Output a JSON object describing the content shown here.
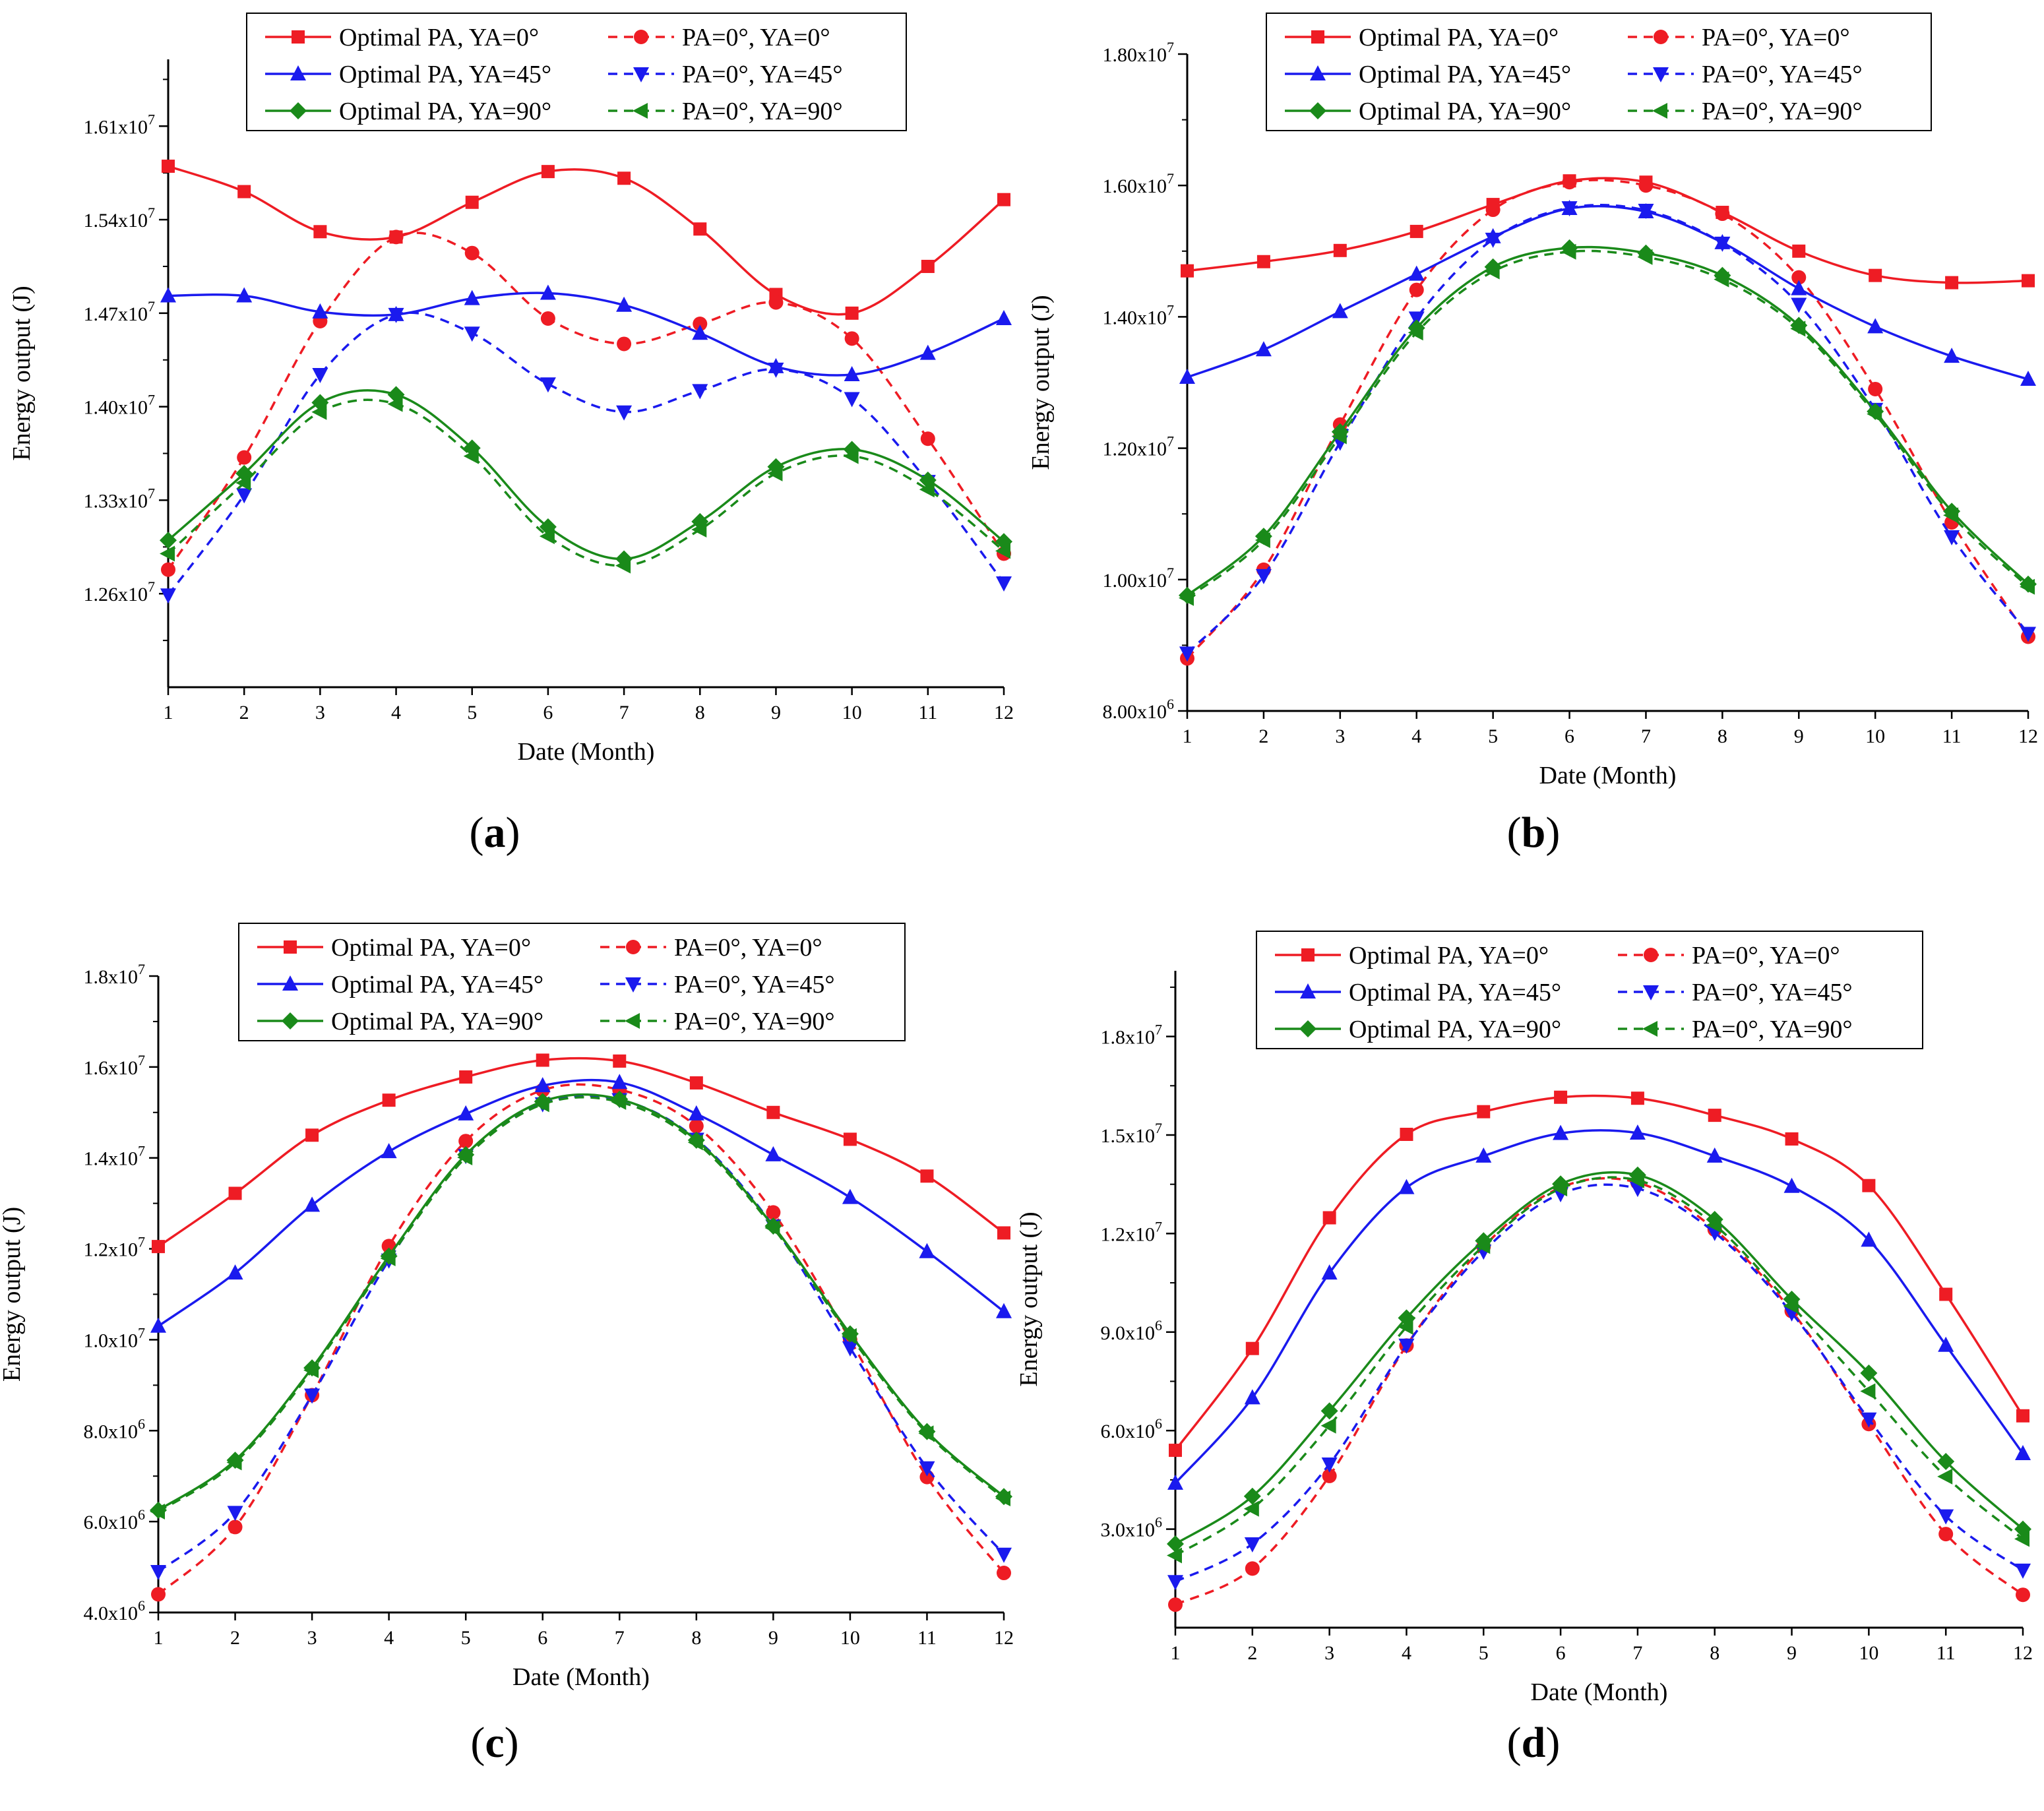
{
  "colors": {
    "red": "#ee1c24",
    "blue": "#1a1aee",
    "green": "#1a8a1a"
  },
  "legend_entries": [
    {
      "name": "Optimal PA, YA=0°",
      "color": "red",
      "dash": false,
      "marker": "square"
    },
    {
      "name": "PA=0°, YA=0°",
      "color": "red",
      "dash": true,
      "marker": "circle"
    },
    {
      "name": "Optimal PA, YA=45°",
      "color": "blue",
      "dash": false,
      "marker": "triangle-up"
    },
    {
      "name": "PA=0°, YA=45°",
      "color": "blue",
      "dash": true,
      "marker": "triangle-down"
    },
    {
      "name": "Optimal PA, YA=90°",
      "color": "green",
      "dash": false,
      "marker": "diamond"
    },
    {
      "name": "PA=0°, YA=90°",
      "color": "green",
      "dash": true,
      "marker": "triangle-left"
    }
  ],
  "chart_data": [
    {
      "type": "line",
      "panel_label": "a",
      "xlabel": "Date (Month)",
      "ylabel": "Energy output (J)",
      "x": [
        1,
        2,
        3,
        4,
        5,
        6,
        7,
        8,
        9,
        10,
        11,
        12
      ],
      "xlim": [
        1,
        12
      ],
      "ylim": [
        11900000.0,
        16600000.0
      ],
      "yticks": [
        12600000.0,
        13300000.0,
        14000000.0,
        14700000.0,
        15400000.0,
        16100000.0
      ],
      "ytick_labels": [
        {
          "mantissa": "1.26x10",
          "exp": "7"
        },
        {
          "mantissa": "1.33x10",
          "exp": "7"
        },
        {
          "mantissa": "1.40x10",
          "exp": "7"
        },
        {
          "mantissa": "1.47x10",
          "exp": "7"
        },
        {
          "mantissa": "1.54x10",
          "exp": "7"
        },
        {
          "mantissa": "1.61x10",
          "exp": "7"
        }
      ],
      "series": [
        {
          "name": "Optimal PA, YA=0°",
          "values": [
            15800000.0,
            15610000.0,
            15310000.0,
            15270000.0,
            15530000.0,
            15760000.0,
            15710000.0,
            15330000.0,
            14840000.0,
            14700000.0,
            15050000.0,
            15550000.0
          ]
        },
        {
          "name": "PA=0°, YA=0°",
          "values": [
            12780000.0,
            13620000.0,
            14640000.0,
            15270000.0,
            15150000.0,
            14660000.0,
            14470000.0,
            14620000.0,
            14780000.0,
            14510000.0,
            13760000.0,
            12900000.0
          ]
        },
        {
          "name": "Optimal PA, YA=45°",
          "values": [
            14830000.0,
            14830000.0,
            14710000.0,
            14690000.0,
            14810000.0,
            14850000.0,
            14760000.0,
            14550000.0,
            14300000.0,
            14240000.0,
            14400000.0,
            14660000.0
          ]
        },
        {
          "name": "PA=0°, YA=45°",
          "values": [
            12590000.0,
            13340000.0,
            14240000.0,
            14690000.0,
            14550000.0,
            14170000.0,
            13960000.0,
            14120000.0,
            14280000.0,
            14060000.0,
            13440000.0,
            12680000.0
          ]
        },
        {
          "name": "Optimal PA, YA=90°",
          "values": [
            13000000.0,
            13500000.0,
            14030000.0,
            14090000.0,
            13690000.0,
            13100000.0,
            12860000.0,
            13140000.0,
            13550000.0,
            13680000.0,
            13450000.0,
            12990000.0
          ]
        },
        {
          "name": "PA=0°, YA=90°",
          "values": [
            12900000.0,
            13430000.0,
            13960000.0,
            14020000.0,
            13630000.0,
            13030000.0,
            12810000.0,
            13080000.0,
            13500000.0,
            13630000.0,
            13380000.0,
            12920000.0
          ]
        }
      ]
    },
    {
      "type": "line",
      "panel_label": "b",
      "xlabel": "Date (Month)",
      "ylabel": "Energy output (J)",
      "x": [
        1,
        2,
        3,
        4,
        5,
        6,
        7,
        8,
        9,
        10,
        11,
        12
      ],
      "xlim": [
        1,
        12
      ],
      "ylim": [
        8000000.0,
        18000000.0
      ],
      "yticks": [
        8000000.0,
        10000000.0,
        12000000.0,
        14000000.0,
        16000000.0,
        18000000.0
      ],
      "ytick_labels": [
        {
          "mantissa": "8.00x10",
          "exp": "6"
        },
        {
          "mantissa": "1.00x10",
          "exp": "7"
        },
        {
          "mantissa": "1.20x10",
          "exp": "7"
        },
        {
          "mantissa": "1.40x10",
          "exp": "7"
        },
        {
          "mantissa": "1.60x10",
          "exp": "7"
        },
        {
          "mantissa": "1.80x10",
          "exp": "7"
        }
      ],
      "series": [
        {
          "name": "Optimal PA, YA=0°",
          "values": [
            14700000.0,
            14840000.0,
            15010000.0,
            15300000.0,
            15710000.0,
            16070000.0,
            16050000.0,
            15590000.0,
            15000000.0,
            14630000.0,
            14520000.0,
            14550000.0
          ]
        },
        {
          "name": "PA=0°, YA=0°",
          "values": [
            8800000.0,
            10150000.0,
            12360000.0,
            14410000.0,
            15630000.0,
            16050000.0,
            16000000.0,
            15570000.0,
            14600000.0,
            12900000.0,
            10870000.0,
            9130000.0
          ]
        },
        {
          "name": "Optimal PA, YA=45°",
          "values": [
            13080000.0,
            13500000.0,
            14080000.0,
            14650000.0,
            15220000.0,
            15650000.0,
            15600000.0,
            15130000.0,
            14430000.0,
            13850000.0,
            13400000.0,
            13050000.0
          ]
        },
        {
          "name": "PA=0°, YA=45°",
          "values": [
            8880000.0,
            10060000.0,
            12090000.0,
            13980000.0,
            15180000.0,
            15660000.0,
            15620000.0,
            15120000.0,
            14190000.0,
            12590000.0,
            10650000.0,
            9180000.0
          ]
        },
        {
          "name": "Optimal PA, YA=90°",
          "values": [
            9760000.0,
            10660000.0,
            12250000.0,
            13830000.0,
            14760000.0,
            15050000.0,
            14970000.0,
            14630000.0,
            13870000.0,
            12560000.0,
            11040000.0,
            9930000.0
          ]
        },
        {
          "name": "PA=0°, YA=90°",
          "values": [
            9720000.0,
            10600000.0,
            12180000.0,
            13760000.0,
            14690000.0,
            14990000.0,
            14910000.0,
            14570000.0,
            13820000.0,
            12520000.0,
            10980000.0,
            9890000.0
          ]
        }
      ]
    },
    {
      "type": "line",
      "panel_label": "c",
      "xlabel": "Date (Month)",
      "ylabel": "Energy output (J)",
      "x": [
        1,
        2,
        3,
        4,
        5,
        6,
        7,
        8,
        9,
        10,
        11,
        12
      ],
      "xlim": [
        1,
        12
      ],
      "ylim": [
        4000000.0,
        18000000.0
      ],
      "yticks": [
        4000000.0,
        6000000.0,
        8000000.0,
        10000000.0,
        12000000.0,
        14000000.0,
        16000000.0,
        18000000.0
      ],
      "ytick_labels": [
        {
          "mantissa": "4.0x10",
          "exp": "6"
        },
        {
          "mantissa": "6.0x10",
          "exp": "6"
        },
        {
          "mantissa": "8.0x10",
          "exp": "6"
        },
        {
          "mantissa": "1.0x10",
          "exp": "7"
        },
        {
          "mantissa": "1.2x10",
          "exp": "7"
        },
        {
          "mantissa": "1.4x10",
          "exp": "7"
        },
        {
          "mantissa": "1.6x10",
          "exp": "7"
        },
        {
          "mantissa": "1.8x10",
          "exp": "7"
        }
      ],
      "series": [
        {
          "name": "Optimal PA, YA=0°",
          "values": [
            12050000.0,
            13220000.0,
            14500000.0,
            15270000.0,
            15780000.0,
            16150000.0,
            16130000.0,
            15650000.0,
            15000000.0,
            14410000.0,
            13600000.0,
            12350000.0
          ]
        },
        {
          "name": "PA=0°, YA=0°",
          "values": [
            4400000.0,
            5880000.0,
            8780000.0,
            12060000.0,
            14370000.0,
            15490000.0,
            15500000.0,
            14700000.0,
            12800000.0,
            10000000.0,
            6980000.0,
            4870000.0
          ]
        },
        {
          "name": "Optimal PA, YA=45°",
          "values": [
            10300000.0,
            11470000.0,
            12960000.0,
            14140000.0,
            14970000.0,
            15590000.0,
            15660000.0,
            14970000.0,
            14070000.0,
            13130000.0,
            11940000.0,
            10620000.0
          ]
        },
        {
          "name": "PA=0°, YA=45°",
          "values": [
            4900000.0,
            6200000.0,
            8780000.0,
            11750000.0,
            14050000.0,
            15190000.0,
            15280000.0,
            14410000.0,
            12500000.0,
            9820000.0,
            7180000.0,
            5280000.0
          ]
        },
        {
          "name": "Optimal PA, YA=90°",
          "values": [
            6250000.0,
            7350000.0,
            9380000.0,
            11840000.0,
            14070000.0,
            15240000.0,
            15290000.0,
            14390000.0,
            12500000.0,
            10130000.0,
            7980000.0,
            6550000.0
          ]
        },
        {
          "name": "PA=0°, YA=90°",
          "values": [
            6220000.0,
            7300000.0,
            9330000.0,
            11790000.0,
            14010000.0,
            15180000.0,
            15230000.0,
            14340000.0,
            12460000.0,
            10080000.0,
            7940000.0,
            6510000.0
          ]
        }
      ]
    },
    {
      "type": "line",
      "panel_label": "d",
      "xlabel": "Date (Month)",
      "ylabel": "Energy output (J)",
      "x": [
        1,
        2,
        3,
        4,
        5,
        6,
        7,
        8,
        9,
        10,
        11,
        12
      ],
      "xlim": [
        1,
        12
      ],
      "ylim": [
        0,
        20000000.0
      ],
      "yticks": [
        3000000.0,
        6000000.0,
        9000000.0,
        12000000.0,
        15000000.0,
        18000000.0
      ],
      "ytick_labels": [
        {
          "mantissa": "3.0x10",
          "exp": "6"
        },
        {
          "mantissa": "6.0x10",
          "exp": "6"
        },
        {
          "mantissa": "9.0x10",
          "exp": "6"
        },
        {
          "mantissa": "1.2x10",
          "exp": "7"
        },
        {
          "mantissa": "1.5x10",
          "exp": "7"
        },
        {
          "mantissa": "1.8x10",
          "exp": "7"
        }
      ],
      "series": [
        {
          "name": "Optimal PA, YA=0°",
          "values": [
            5400000.0,
            8500000.0,
            12480000.0,
            15020000.0,
            15710000.0,
            16150000.0,
            16120000.0,
            15600000.0,
            14880000.0,
            13460000.0,
            10150000.0,
            6450000.0
          ]
        },
        {
          "name": "PA=0°, YA=0°",
          "values": [
            700000.0,
            1800000.0,
            4620000.0,
            8590000.0,
            11600000.0,
            13400000.0,
            13550000.0,
            12120000.0,
            9640000.0,
            6200000.0,
            2850000.0,
            1000000.0
          ]
        },
        {
          "name": "Optimal PA, YA=45°",
          "values": [
            4400000.0,
            7000000.0,
            10800000.0,
            13400000.0,
            14360000.0,
            15050000.0,
            15060000.0,
            14360000.0,
            13440000.0,
            11800000.0,
            8600000.0,
            5300000.0
          ]
        },
        {
          "name": "PA=0°, YA=45°",
          "values": [
            1400000.0,
            2550000.0,
            4980000.0,
            8600000.0,
            11460000.0,
            13210000.0,
            13370000.0,
            12030000.0,
            9580000.0,
            6350000.0,
            3400000.0,
            1750000.0
          ]
        },
        {
          "name": "Optimal PA, YA=90°",
          "values": [
            2550000.0,
            4000000.0,
            6600000.0,
            9430000.0,
            11780000.0,
            13510000.0,
            13780000.0,
            12430000.0,
            10000000.0,
            7750000.0,
            5060000.0,
            3000000.0
          ]
        },
        {
          "name": "PA=0°, YA=90°",
          "values": [
            2200000.0,
            3620000.0,
            6150000.0,
            9160000.0,
            11620000.0,
            13370000.0,
            13620000.0,
            12260000.0,
            9800000.0,
            7200000.0,
            4600000.0,
            2700000.0
          ]
        }
      ]
    }
  ]
}
